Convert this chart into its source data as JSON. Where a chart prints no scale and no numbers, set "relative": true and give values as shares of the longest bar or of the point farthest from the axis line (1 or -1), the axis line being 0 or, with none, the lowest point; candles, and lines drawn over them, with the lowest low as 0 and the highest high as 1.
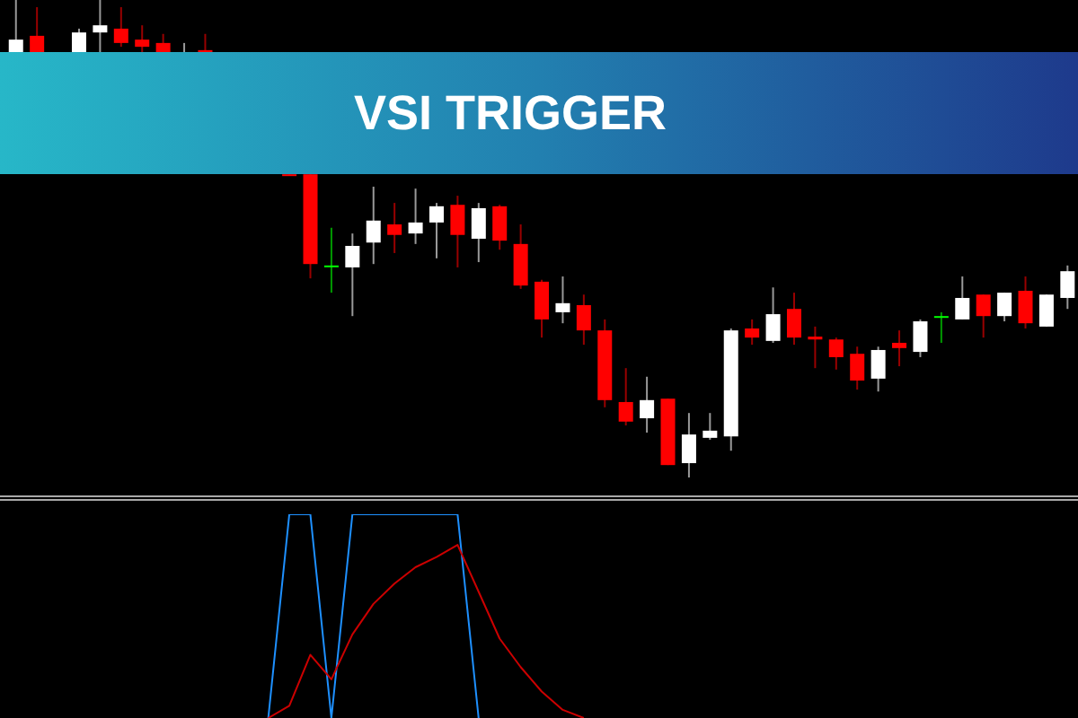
{
  "chart_data": [
    {
      "type": "candlestick",
      "title": "VSI TRIGGER",
      "relative": true,
      "categories": [
        null,
        null,
        null,
        null,
        null,
        null,
        null,
        null,
        null,
        null,
        null,
        null,
        null,
        null,
        null,
        null,
        null,
        null,
        null,
        null,
        null,
        null,
        null,
        null,
        null,
        null,
        null,
        null,
        null,
        null,
        null,
        null,
        null,
        null,
        null,
        null,
        null,
        null,
        null,
        null,
        null,
        null,
        null,
        null,
        null,
        null,
        null,
        null,
        null,
        null,
        null
      ],
      "ohlc": [
        [
          0.891,
          1.0,
          0.891,
          0.917
        ],
        [
          0.925,
          0.985,
          0.891,
          0.891
        ],
        null,
        [
          0.891,
          0.94,
          0.891,
          0.932
        ],
        [
          0.932,
          1.0,
          0.891,
          0.947
        ],
        [
          0.94,
          0.985,
          0.902,
          0.91
        ],
        [
          0.917,
          0.947,
          0.891,
          0.902
        ],
        [
          0.91,
          0.929,
          0.891,
          0.891
        ],
        [
          0.891,
          0.91,
          0.891,
          0.891
        ],
        [
          0.895,
          0.929,
          0.891,
          0.891
        ],
        null,
        null,
        null,
        [
          0.635,
          0.635,
          0.632,
          0.635
        ],
        [
          0.635,
          0.635,
          0.417,
          0.447
        ],
        [
          0.444,
          0.523,
          0.387,
          0.444
        ],
        [
          0.44,
          0.511,
          0.338,
          0.485
        ],
        [
          0.492,
          0.609,
          0.447,
          0.538
        ],
        [
          0.53,
          0.575,
          0.47,
          0.508
        ],
        [
          0.511,
          0.605,
          0.489,
          0.534
        ],
        [
          0.534,
          0.575,
          0.459,
          0.568
        ],
        [
          0.571,
          0.59,
          0.44,
          0.508
        ],
        [
          0.5,
          0.575,
          0.451,
          0.564
        ],
        [
          0.568,
          0.571,
          0.477,
          0.496
        ],
        [
          0.489,
          0.53,
          0.395,
          0.402
        ],
        [
          0.41,
          0.414,
          0.293,
          0.331
        ],
        [
          0.346,
          0.421,
          0.323,
          0.365
        ],
        [
          0.361,
          0.383,
          0.278,
          0.308
        ],
        [
          0.308,
          0.331,
          0.147,
          0.162
        ],
        [
          0.158,
          0.229,
          0.109,
          0.117
        ],
        [
          0.124,
          0.211,
          0.094,
          0.162
        ],
        [
          0.165,
          0.165,
          0.026,
          0.026
        ],
        [
          0.03,
          0.135,
          0,
          0.09
        ],
        [
          0.083,
          0.135,
          0.079,
          0.098
        ],
        [
          0.086,
          0.312,
          0.056,
          0.308
        ],
        [
          0.312,
          0.331,
          0.278,
          0.293
        ],
        [
          0.286,
          0.398,
          0.282,
          0.342
        ],
        [
          0.353,
          0.387,
          0.278,
          0.293
        ],
        [
          0.295,
          0.316,
          0.229,
          0.289
        ],
        [
          0.289,
          0.293,
          0.226,
          0.252
        ],
        [
          0.259,
          0.274,
          0.184,
          0.203
        ],
        [
          0.207,
          0.274,
          0.18,
          0.267
        ],
        [
          0.282,
          0.308,
          0.233,
          0.271
        ],
        [
          0.263,
          0.331,
          0.252,
          0.327
        ],
        [
          0.338,
          0.346,
          0.282,
          0.338
        ],
        [
          0.331,
          0.421,
          0.331,
          0.376
        ],
        [
          0.383,
          0.383,
          0.293,
          0.338
        ],
        [
          0.338,
          0.387,
          0.327,
          0.387
        ],
        [
          0.391,
          0.421,
          0.312,
          0.323
        ],
        [
          0.316,
          0.383,
          0.316,
          0.383
        ],
        [
          0.376,
          0.444,
          0.353,
          0.432
        ]
      ],
      "colors": [
        "#ffffff",
        "#ff0000",
        null,
        "#ffffff",
        "#ffffff",
        "#ff0000",
        "#ff0000",
        "#ff0000",
        "#ffffff",
        "#ff0000",
        null,
        null,
        null,
        "#ff0000",
        "#ff0000",
        "#00ff00",
        "#ffffff",
        "#ffffff",
        "#ff0000",
        "#ffffff",
        "#ffffff",
        "#ff0000",
        "#ffffff",
        "#ff0000",
        "#ff0000",
        "#ff0000",
        "#ffffff",
        "#ff0000",
        "#ff0000",
        "#ff0000",
        "#ffffff",
        "#ff0000",
        "#ffffff",
        "#ffffff",
        "#ffffff",
        "#ff0000",
        "#ffffff",
        "#ff0000",
        "#ff0000",
        "#ff0000",
        "#ff0000",
        "#ffffff",
        "#ff0000",
        "#ffffff",
        "#00ff00",
        "#ffffff",
        "#ff0000",
        "#ffffff",
        "#ff0000",
        "#ffffff",
        "#ffffff"
      ]
    },
    {
      "type": "line",
      "relative": true,
      "categories": [
        null,
        null,
        null,
        null,
        null,
        null,
        null,
        null,
        null,
        null,
        null,
        null,
        null,
        null,
        null,
        null,
        null,
        null,
        null,
        null,
        null,
        null,
        null,
        null,
        null,
        null,
        null,
        null,
        null,
        null,
        null,
        null,
        null,
        null,
        null,
        null,
        null,
        null,
        null,
        null,
        null,
        null,
        null,
        null,
        null,
        null,
        null,
        null,
        null,
        null,
        null
      ],
      "series": [
        {
          "color": "#1e90ff",
          "values": [
            null,
            null,
            null,
            null,
            null,
            null,
            null,
            null,
            null,
            null,
            null,
            null,
            0,
            1,
            1,
            0,
            1,
            1,
            1,
            1,
            1,
            1,
            0,
            null,
            null,
            null,
            null,
            null,
            null,
            null,
            null,
            null,
            null,
            null,
            null,
            null,
            null,
            null,
            null,
            null,
            null,
            null,
            null,
            null,
            null,
            null,
            null,
            null,
            null,
            null,
            null
          ]
        },
        {
          "color": "#cc0000",
          "values": [
            null,
            null,
            null,
            null,
            null,
            null,
            null,
            null,
            null,
            null,
            null,
            null,
            0,
            0.06,
            0.31,
            0.19,
            0.41,
            0.56,
            0.66,
            0.74,
            0.79,
            0.85,
            0.62,
            0.39,
            0.25,
            0.13,
            0.04,
            0,
            null,
            null,
            null,
            null,
            null,
            null,
            null,
            null,
            null,
            null,
            null,
            null,
            null,
            null,
            null,
            null,
            null,
            null,
            null,
            null,
            null,
            null,
            null
          ]
        }
      ]
    }
  ]
}
